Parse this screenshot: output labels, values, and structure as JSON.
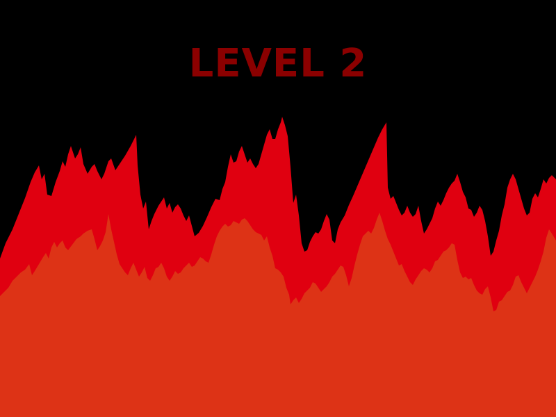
{
  "screen": {
    "title": "LEVEL 2"
  },
  "colors": {
    "background": "#000000",
    "title": "#8b0000",
    "flame_back": "#e00010",
    "flame_front": "#dd3316"
  },
  "scene": {
    "flame_back_name": "flame-layer-back",
    "flame_front_name": "flame-layer-front"
  }
}
